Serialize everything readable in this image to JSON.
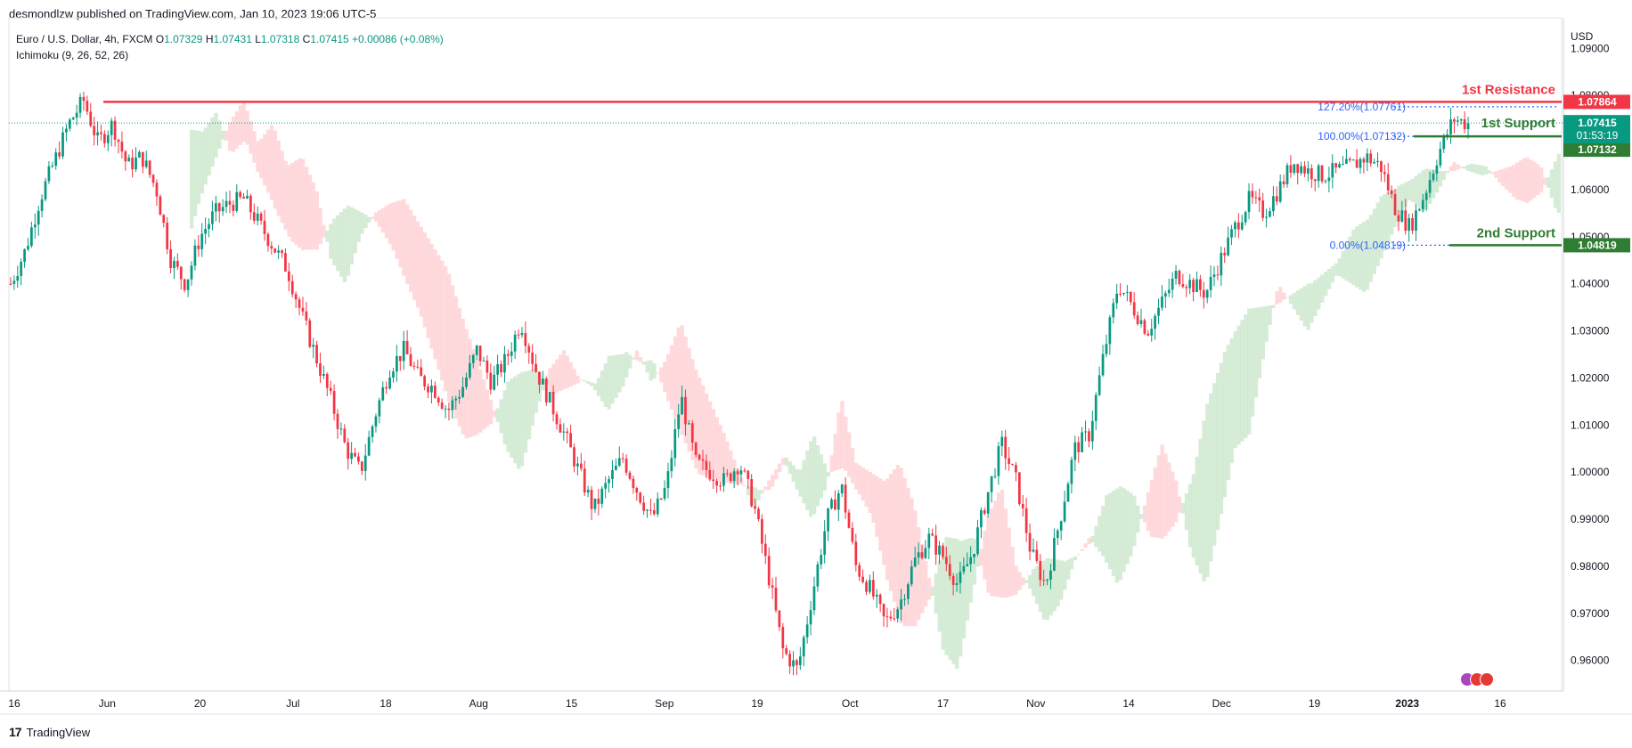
{
  "header": {
    "publish_line": "desmondlzw published on TradingView.com, Jan 10, 2023 19:06 UTC-5"
  },
  "legend": {
    "symbol": "Euro / U.S. Dollar, 4h, FXCM",
    "open_label": "O",
    "open_value": "1.07329",
    "high_label": "H",
    "high_value": "1.07431",
    "low_label": "L",
    "low_value": "1.07318",
    "close_label": "C",
    "close_value": "1.07415",
    "change": "+0.00086 (+0.08%)",
    "indicator": "Ichimoku (9, 26, 52, 26)"
  },
  "price_axis": {
    "currency": "USD"
  },
  "footer": {
    "brand": "TradingView",
    "logo_glyph": "17"
  },
  "colors": {
    "bull": "#089981",
    "bear": "#f23645",
    "resistance": "#f23645",
    "support": "#2e7d32",
    "fib": "#2962ff",
    "cloud_bull": "#c8e6c9",
    "cloud_bear": "#ffcdd2"
  },
  "chart_data": {
    "type": "line",
    "title": "",
    "timeframe": "4h",
    "ylim": [
      0.9535,
      1.0965
    ],
    "y_ticks": [
      "1.09000",
      "1.08000",
      "1.07000",
      "1.06000",
      "1.05000",
      "1.04000",
      "1.03000",
      "1.02000",
      "1.01000",
      "1.00000",
      "0.99000",
      "0.98000",
      "0.97000",
      "0.96000"
    ],
    "x_ticks": [
      "16",
      "Jun",
      "20",
      "Jul",
      "18",
      "Aug",
      "15",
      "Sep",
      "19",
      "Oct",
      "17",
      "Nov",
      "14",
      "Dec",
      "19",
      "2023",
      "16"
    ],
    "x_tick_bold": "2023",
    "price_path": [
      1.04,
      1.047,
      1.058,
      1.066,
      1.074,
      1.079,
      1.07,
      1.074,
      1.065,
      1.067,
      1.06,
      1.045,
      1.04,
      1.05,
      1.055,
      1.057,
      1.058,
      1.053,
      1.048,
      1.043,
      1.033,
      1.024,
      1.015,
      1.005,
      1.0,
      1.012,
      1.022,
      1.026,
      1.02,
      1.018,
      1.013,
      1.018,
      1.026,
      1.019,
      1.024,
      1.032,
      1.022,
      1.015,
      1.008,
      1.0,
      0.992,
      0.998,
      1.003,
      0.996,
      0.99,
      0.997,
      1.016,
      1.002,
      1.0,
      0.998,
      1.002,
      0.993,
      0.978,
      0.962,
      0.958,
      0.974,
      0.99,
      0.997,
      0.98,
      0.975,
      0.968,
      0.972,
      0.981,
      0.986,
      0.982,
      0.976,
      0.983,
      0.995,
      1.006,
      0.998,
      0.983,
      0.976,
      0.99,
      1.005,
      1.008,
      1.025,
      1.04,
      1.035,
      1.03,
      1.036,
      1.042,
      1.04,
      1.038,
      1.045,
      1.052,
      1.058,
      1.055,
      1.06,
      1.066,
      1.064,
      1.063,
      1.064,
      1.065,
      1.067,
      1.065,
      1.056,
      1.052,
      1.059,
      1.068,
      1.075,
      1.074
    ],
    "price_path_range": [
      "16",
      "2023 (Jan 10)"
    ],
    "ichimoku_cloud": "green where bullish, red where bearish, drawn behind price",
    "levels": [
      {
        "name": "1st Resistance",
        "value": 1.07864,
        "value_label": "1.07864",
        "color": "#f23645"
      },
      {
        "name": "1st Support",
        "value": 1.07132,
        "value_label": "1.07132",
        "color": "#2e7d32"
      },
      {
        "name": "2nd Support",
        "value": 1.04819,
        "value_label": "1.04819",
        "color": "#2e7d32"
      }
    ],
    "fib_levels": [
      {
        "label": "127.20%(1.07761)",
        "value": 1.07761
      },
      {
        "label": "100.00%(1.07132)",
        "value": 1.07132
      },
      {
        "label": "0.00%(1.04819)",
        "value": 1.04819
      }
    ],
    "last_price": {
      "value": 1.07415,
      "label": "1.07415",
      "countdown": "01:53:19"
    }
  }
}
